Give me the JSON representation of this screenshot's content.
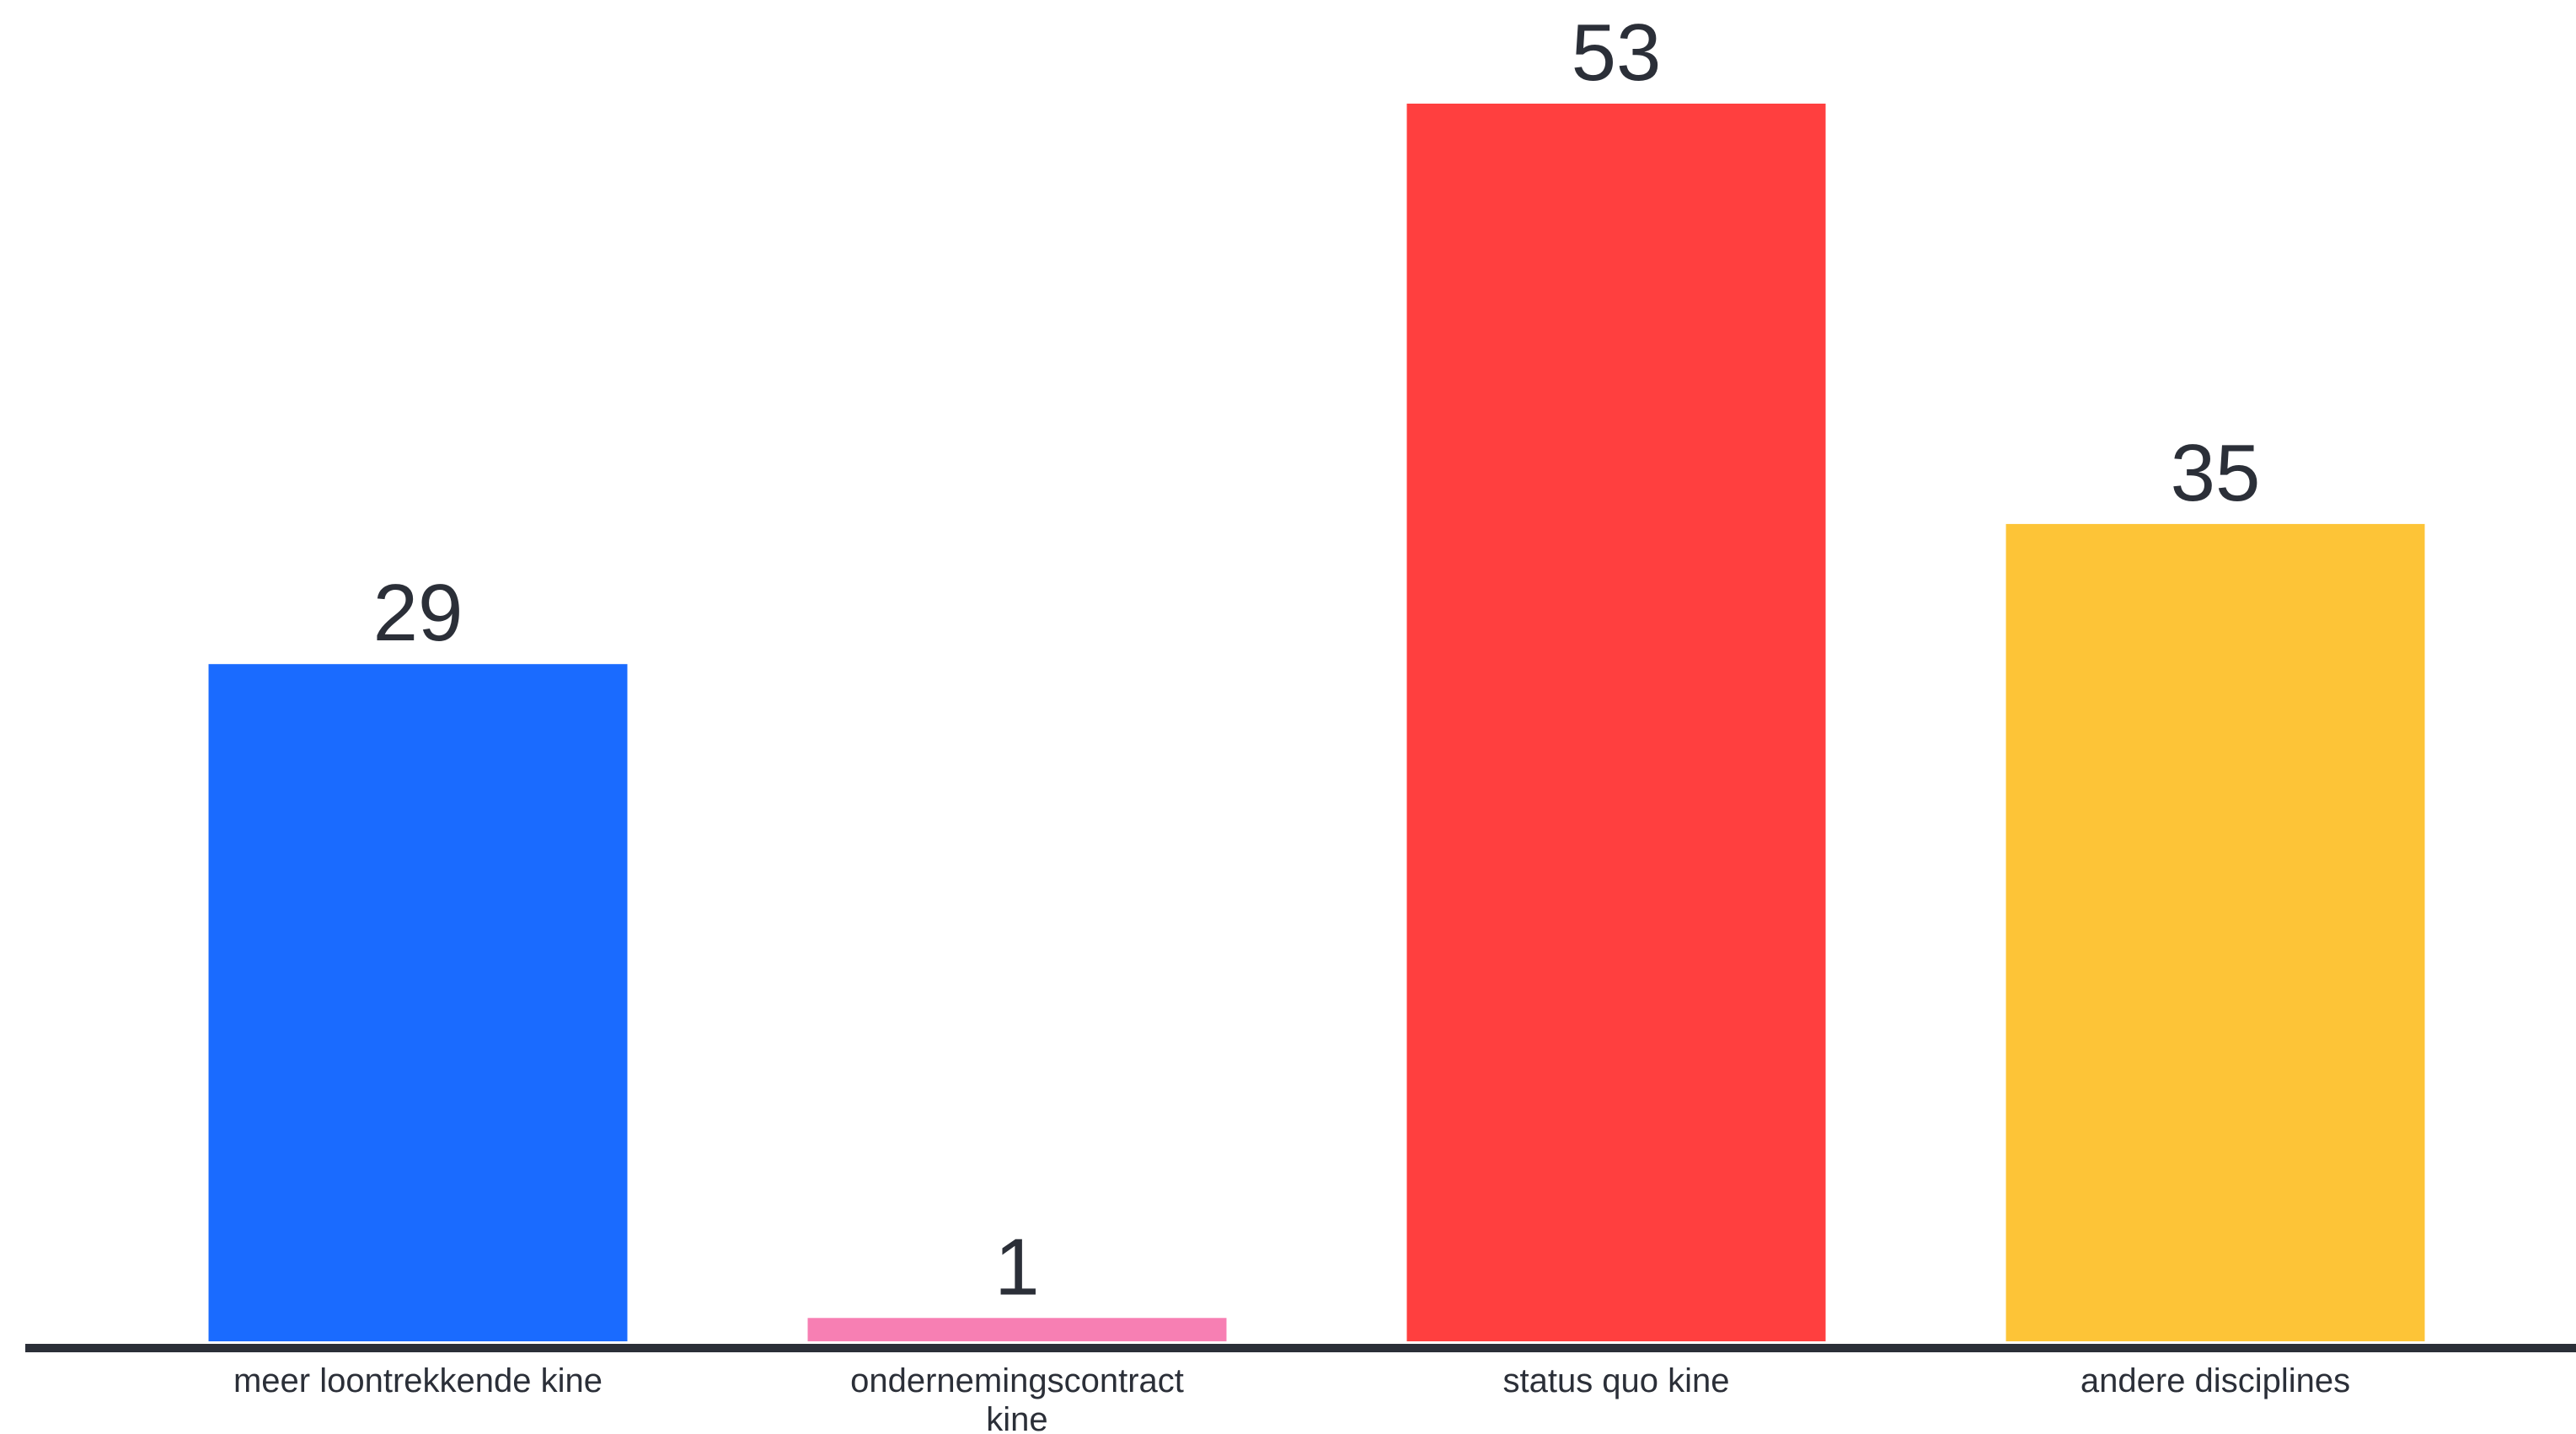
{
  "chart_data": {
    "type": "bar",
    "title": "",
    "xlabel": "",
    "ylabel": "",
    "categories": [
      [
        "meer loontrekkende kine"
      ],
      [
        "ondernemingscontract",
        "kine"
      ],
      [
        "status quo kine"
      ],
      [
        "andere disciplines"
      ]
    ],
    "values": [
      29,
      1,
      53,
      35
    ],
    "colors": [
      "#1a6bff",
      "#f77fb3",
      "#ff3f3f",
      "#fdc437"
    ],
    "ylim": [
      0,
      53
    ],
    "grid": false,
    "legend": "none",
    "data_labels": true,
    "axis_color": "#2b2f38",
    "text_color": "#2b2f38"
  }
}
